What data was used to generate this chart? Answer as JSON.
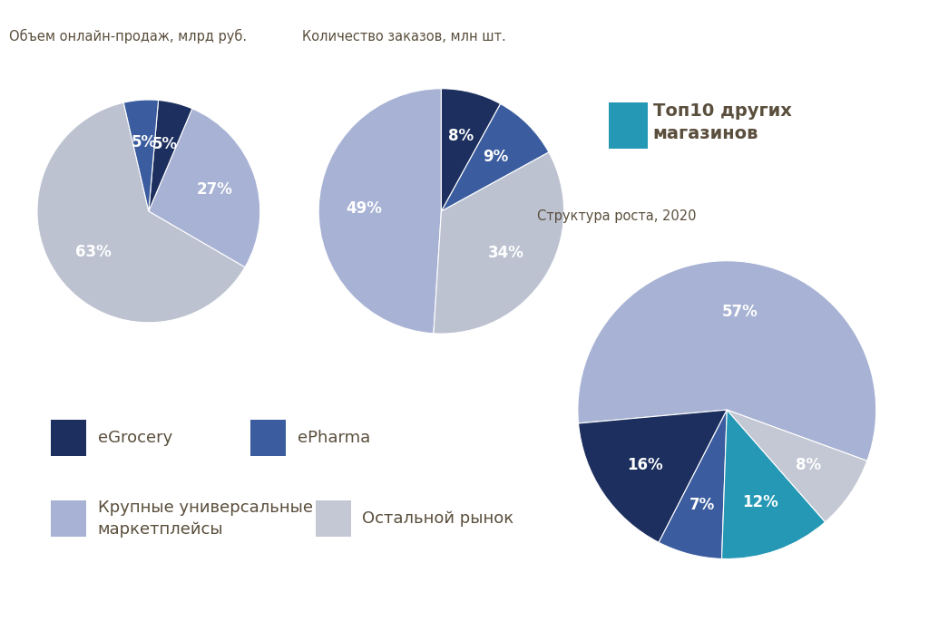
{
  "chart1": {
    "title": "Объем онлайн-продаж, млрд руб.",
    "values": [
      63,
      27,
      5,
      5
    ],
    "colors": [
      "#bcc2d0",
      "#a8b2d4",
      "#1c2f5e",
      "#3b5c9e"
    ],
    "labels": [
      "63%",
      "27%",
      "5%",
      "5%"
    ],
    "startangle": 103
  },
  "chart2": {
    "title": "Количество заказов, млн шт.",
    "values": [
      49,
      34,
      9,
      8
    ],
    "colors": [
      "#a8b2d4",
      "#bcc2d0",
      "#3b5c9e",
      "#1c2f5e"
    ],
    "labels": [
      "49%",
      "34%",
      "9%",
      "8%"
    ],
    "startangle": 90
  },
  "chart3": {
    "title": "Структура роста, 2020",
    "values": [
      57,
      16,
      7,
      12,
      8
    ],
    "colors": [
      "#a8b2d4",
      "#1c2f5e",
      "#3b5c9e",
      "#2498b4",
      "#c4c8d4"
    ],
    "labels": [
      "57%",
      "16%",
      "7%",
      "12%",
      "8%"
    ],
    "startangle": 340
  },
  "legend_items": [
    {
      "label": "eGrocery",
      "color": "#1c2f5e"
    },
    {
      "label": "ePharma",
      "color": "#3b5c9e"
    },
    {
      "label": "Крупные универсальные\nмаркетплейсы",
      "color": "#a8b2d4"
    },
    {
      "label": "Остальной рынок",
      "color": "#c4c8d4"
    },
    {
      "label": "Топ10 других\nмагазинов",
      "color": "#2498b4"
    }
  ],
  "background_color": "#ffffff",
  "text_color": "#5a4e3c",
  "label_color": "#ffffff",
  "label_fontsize": 12,
  "title_fontsize": 10.5
}
